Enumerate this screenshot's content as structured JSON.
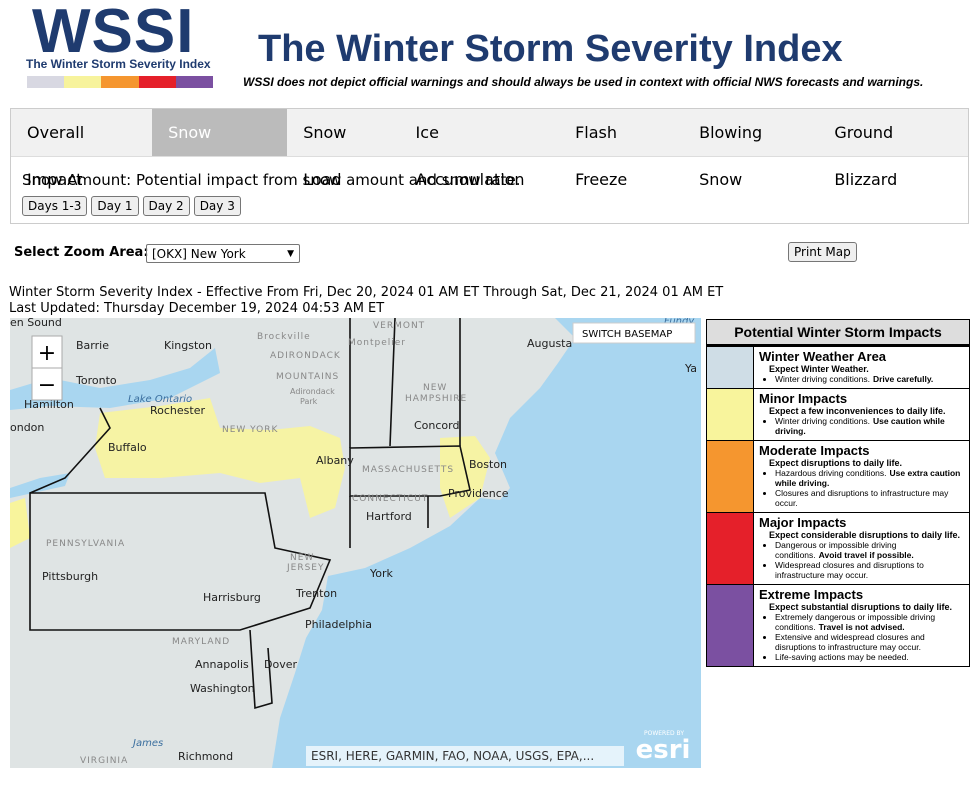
{
  "header": {
    "logo": "WSSI",
    "logo_subtitle": "The Winter Storm Severity Index",
    "title": "The Winter Storm Severity Index",
    "disclaimer": "WSSI does not depict official warnings and should always be used in context with official NWS forecasts and warnings."
  },
  "tabs": [
    "Overall Impact",
    "Snow Amount",
    "Snow Load",
    "Ice Accumulation",
    "Flash Freeze",
    "Blowing Snow",
    "Ground Blizzard"
  ],
  "active_tab": 1,
  "description": "Snow Amount: Potential impact from snow amount and snow rate.",
  "day_buttons": [
    "Days 1-3",
    "Day 1",
    "Day 2",
    "Day 3"
  ],
  "zoom": {
    "label": "Select Zoom Area:",
    "selected": "[OKX] New York"
  },
  "print_button": "Print Map",
  "effective": "Winter Storm Severity Index - Effective From Fri, Dec 20, 2024 01 AM ET Through Sat, Dec 21, 2024 01 AM ET",
  "last_updated": "Last Updated: Thursday December 19, 2024 04:53 AM ET",
  "map": {
    "switch_basemap": "SWITCH BASEMAP",
    "zoom_in": "+",
    "zoom_out": "−",
    "attribution": "ESRI, HERE, GARMIN, FAO, NOAA, USGS, EPA,...",
    "esri_powered": "POWERED BY",
    "esri": "esri",
    "labels": [
      "en Sound",
      "Barrie",
      "Kingston",
      "Brockville",
      "Montpelier",
      "Augusta",
      "Toronto",
      "Hamilton",
      "Lake Ontario",
      "Rochester",
      "ondon",
      "ADIRONDACK",
      "MOUNTAINS",
      "Adirondack",
      "Park",
      "VERMONT",
      "NEW",
      "HAMPSHIRE",
      "Concord",
      "NEW YORK",
      "Buffalo",
      "Albany",
      "MASSACHUSETTS",
      "Boston",
      "CONNECTICUT",
      "Hartford",
      "Providence",
      "PENNSYLVANIA",
      "Pittsburgh",
      "Harrisburg",
      "NEW",
      "JERSEY",
      "York",
      "Trenton",
      "Philadelphia",
      "MARYLAND",
      "Annapolis",
      "Dover",
      "Washington",
      "James",
      "Richmond",
      "VIRGINIA",
      "Fundy",
      "Ya"
    ]
  },
  "legend": {
    "title": "Potential Winter Storm Impacts",
    "items": [
      {
        "name": "Winter Weather Area",
        "color": "#cfdde6",
        "headline": "Expect Winter Weather.",
        "bullets": [
          {
            "text": "Winter driving conditions.",
            "emphasis": "Drive carefully."
          }
        ]
      },
      {
        "name": "Minor Impacts",
        "color": "#f8f49c",
        "headline": "Expect a few inconveniences to daily life.",
        "bullets": [
          {
            "text": "Winter driving conditions.",
            "emphasis": "Use caution while driving."
          }
        ]
      },
      {
        "name": "Moderate Impacts",
        "color": "#f5962f",
        "headline": "Expect disruptions to daily life.",
        "bullets": [
          {
            "text": "Hazardous driving conditions.",
            "emphasis": "Use extra caution while driving."
          },
          {
            "text": "Closures and disruptions to infrastructure may occur."
          }
        ]
      },
      {
        "name": "Major Impacts",
        "color": "#e5202a",
        "headline": "Expect considerable disruptions to daily life.",
        "bullets": [
          {
            "text": "Dangerous or impossible driving conditions.",
            "emphasis": "Avoid travel if possible."
          },
          {
            "text": "Widespread closures and disruptions to infrastructure may occur."
          }
        ]
      },
      {
        "name": "Extreme Impacts",
        "color": "#7b50a1",
        "headline": "Expect substantial disruptions to daily life.",
        "bullets": [
          {
            "text": "Extremely dangerous or impossible driving conditions.",
            "emphasis": "Travel is not advised."
          },
          {
            "text": "Extensive and widespread closures and disruptions to infrastructure may occur."
          },
          {
            "text": "Life-saving actions may be needed."
          }
        ]
      }
    ]
  }
}
